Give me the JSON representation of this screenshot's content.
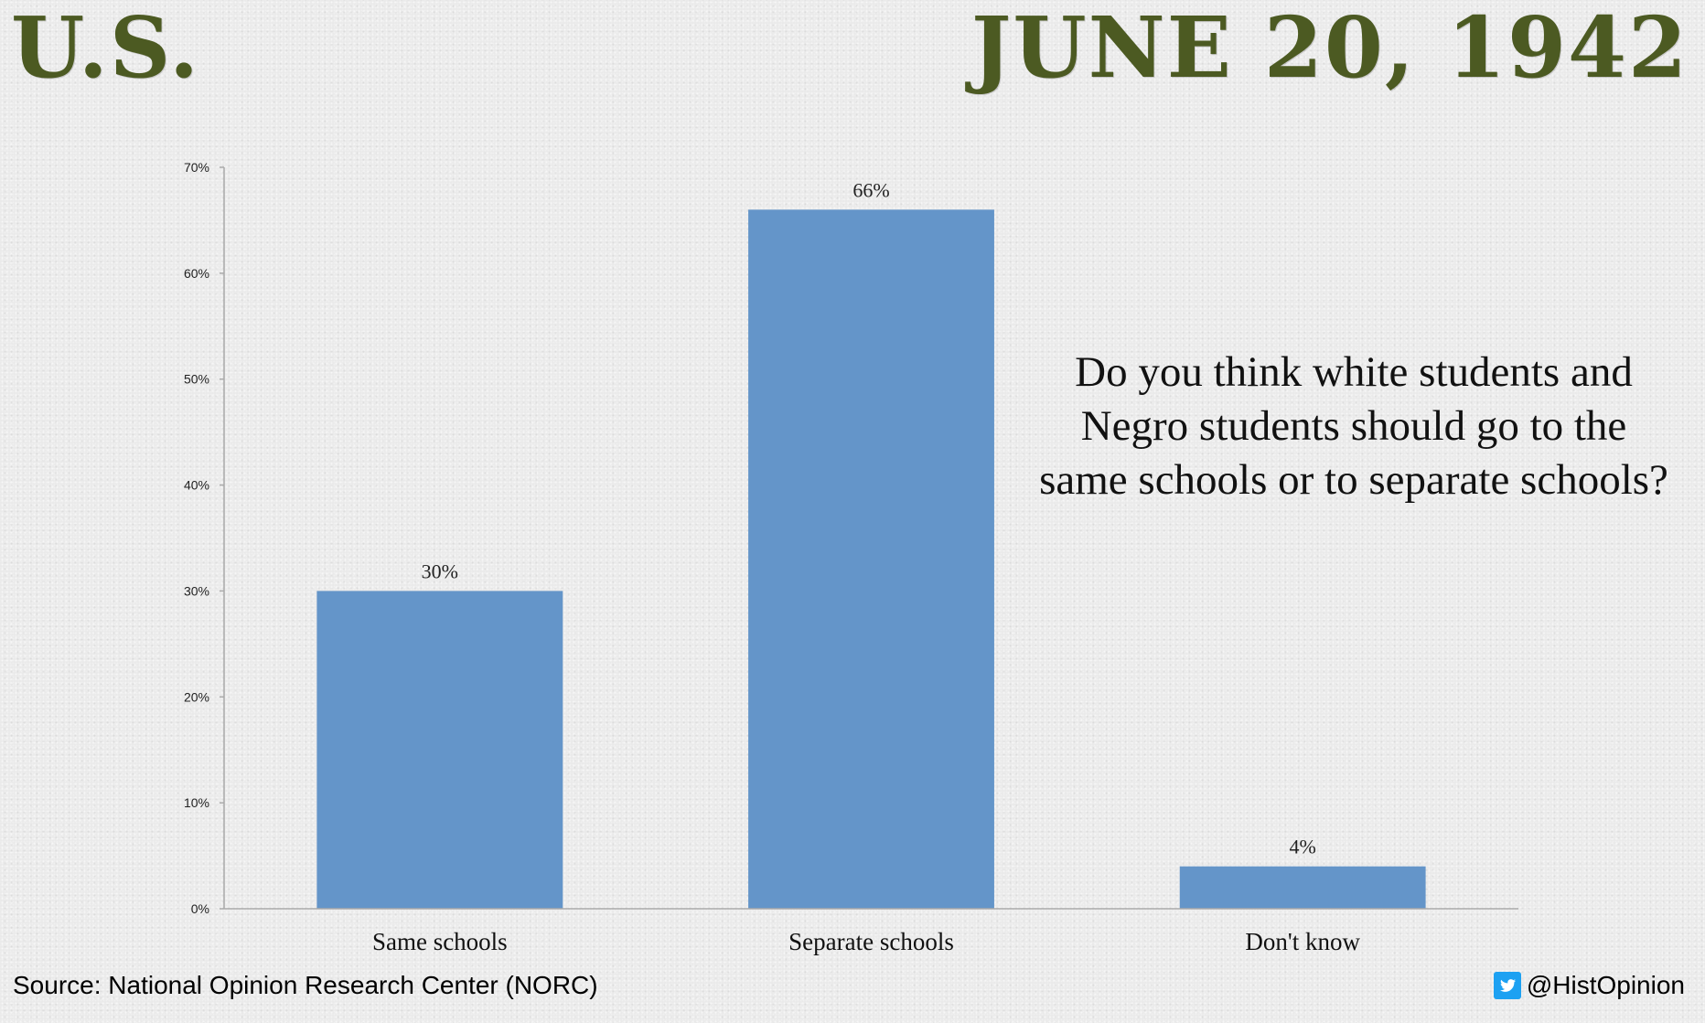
{
  "header": {
    "left_title": "U.S.",
    "right_title": "JUNE 20, 1942"
  },
  "question": {
    "lines": [
      "Do you think white students and",
      "Negro students should go to the",
      "same schools or to separate schools?"
    ]
  },
  "footer": {
    "source": "Source: National Opinion Research Center (NORC)",
    "handle": "@HistOpinion",
    "handle_icon": "twitter-icon"
  },
  "colors": {
    "bar": "#6495c9",
    "headline": "#4c5a22",
    "axis": "#aaaaaa"
  },
  "chart_data": {
    "type": "bar",
    "categories": [
      "Same schools",
      "Separate schools",
      "Don't know"
    ],
    "values": [
      30,
      66,
      4
    ],
    "value_labels": [
      "30%",
      "66%",
      "4%"
    ],
    "y_ticks": [
      0,
      10,
      20,
      30,
      40,
      50,
      60,
      70
    ],
    "y_tick_labels": [
      "0%",
      "10%",
      "20%",
      "30%",
      "40%",
      "50%",
      "60%",
      "70%"
    ],
    "ylim": [
      0,
      70
    ],
    "grid": false,
    "title": "",
    "xlabel": "",
    "ylabel": ""
  }
}
